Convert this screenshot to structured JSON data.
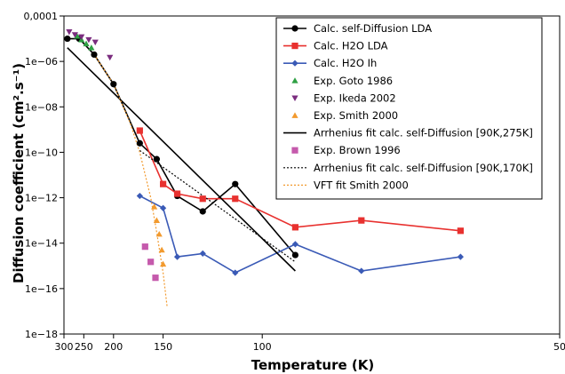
{
  "chart_data": {
    "type": "scatter",
    "xlabel": "Temperature (K)",
    "ylabel": "Diffusion coefficient (cm².s⁻¹)",
    "x_scale": "reciprocal",
    "y_scale": "log",
    "xlim": [
      300,
      50
    ],
    "ylim": [
      1e-18,
      0.0001
    ],
    "x_ticks": [
      300,
      250,
      200,
      150,
      100,
      50
    ],
    "x_tick_labels": [
      "300",
      "250",
      "200",
      "150",
      "100",
      "50"
    ],
    "y_ticks": [
      1e-18,
      1e-16,
      1e-14,
      1e-12,
      1e-10,
      1e-08,
      1e-06,
      0.0001
    ],
    "y_tick_labels": [
      "1e−18",
      "1e−16",
      "1e−14",
      "1e−12",
      "1e−10",
      "1e−08",
      "1e−06",
      "0,0001"
    ],
    "grid": false,
    "legend_position": "top-right",
    "series": [
      {
        "name": "Calc. self-Diffusion LDA",
        "color": "#000000",
        "marker": "circle",
        "line": "solid",
        "x": [
          290,
          260,
          230,
          200,
          170,
          155,
          140,
          125,
          110,
          90
        ],
        "y": [
          1e-05,
          1e-05,
          2e-06,
          1e-07,
          2.5e-10,
          5e-11,
          1.2e-12,
          2.5e-13,
          4e-12,
          3e-15
        ]
      },
      {
        "name": "Calc. H2O LDA",
        "color": "#e8312f",
        "marker": "square",
        "line": "solid",
        "x": [
          170,
          150,
          140,
          125,
          110,
          90,
          75,
          60
        ],
        "y": [
          9e-10,
          4e-12,
          1.5e-12,
          9e-13,
          9e-13,
          5e-14,
          1e-13,
          3.5e-14
        ]
      },
      {
        "name": "Calc. H2O Ih",
        "color": "#3a5ab6",
        "marker": "diamond",
        "line": "solid",
        "x": [
          170,
          150,
          140,
          125,
          110,
          90,
          75,
          60
        ],
        "y": [
          1.2e-12,
          3.5e-13,
          2.5e-15,
          3.5e-15,
          5e-16,
          9e-15,
          6e-16,
          2.5e-15
        ]
      },
      {
        "name": "Exp. Goto 1986",
        "color": "#2ea043",
        "marker": "triangle-up",
        "line": "none",
        "x": [
          265,
          255,
          245,
          235
        ],
        "y": [
          1.3e-05,
          9e-06,
          6e-06,
          4e-06
        ]
      },
      {
        "name": "Exp. Ikeda 2002",
        "color": "#7b2d7f",
        "marker": "triangle-down",
        "line": "none",
        "x": [
          285,
          270,
          255,
          240,
          228,
          205
        ],
        "y": [
          2e-05,
          1.5e-05,
          1.2e-05,
          9e-06,
          7e-06,
          1.5e-06
        ]
      },
      {
        "name": "Exp. Smith 2000",
        "color": "#f29a2e",
        "marker": "triangle-up",
        "line": "none",
        "x": [
          157,
          155,
          153,
          151,
          150
        ],
        "y": [
          4e-13,
          1e-13,
          2.5e-14,
          5e-15,
          1.2e-15
        ]
      },
      {
        "name": "Arrhenius fit calc. self-Diffusion [90K,275K]",
        "color": "#000000",
        "marker": "none",
        "line": "solid",
        "x": [
          290,
          90
        ],
        "y": [
          4e-06,
          6e-16
        ]
      },
      {
        "name": "Exp. Brown 1996",
        "color": "#c55aac",
        "marker": "square",
        "line": "none",
        "x": [
          165,
          160,
          156
        ],
        "y": [
          7e-15,
          1.5e-15,
          3e-16
        ]
      },
      {
        "name": "Arrhenius fit calc. self-Diffusion [90K,170K]",
        "color": "#000000",
        "marker": "none",
        "line": "dotted",
        "x": [
          170,
          90
        ],
        "y": [
          1.2e-10,
          1.5e-15
        ]
      },
      {
        "name": "VFT fit Smith 2000",
        "color": "#f29a2e",
        "marker": "none",
        "line": "dotted",
        "x": [
          230,
          200,
          180,
          170,
          160,
          155,
          150,
          147
        ],
        "y": [
          2e-06,
          1e-07,
          2e-09,
          1e-10,
          1e-12,
          3e-14,
          5e-16,
          1.5e-17
        ]
      }
    ]
  }
}
